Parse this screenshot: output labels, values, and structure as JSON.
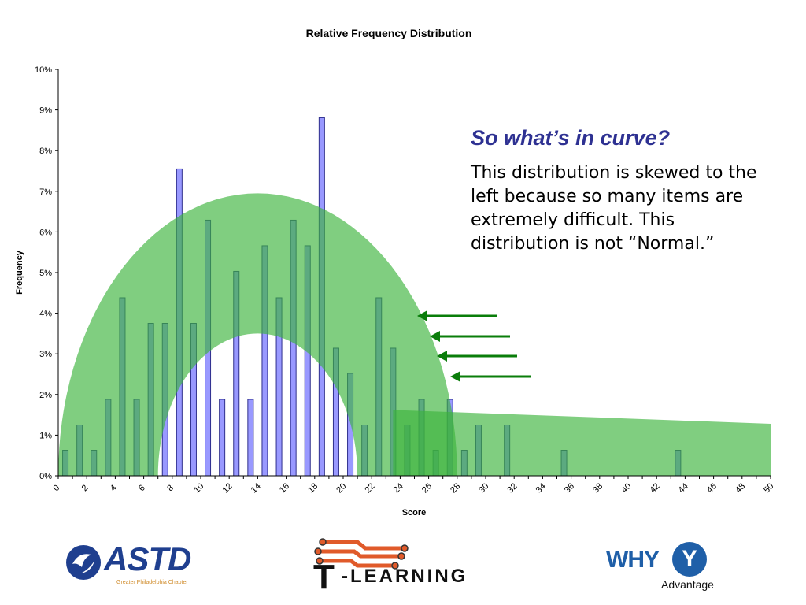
{
  "slide": {
    "heading": "So what’s in curve?",
    "body": "This distribution is skewed to the left because so many items are extremely difficult.  This distribution is not “Normal.”"
  },
  "logos": {
    "astd": {
      "name": "ASTD",
      "subtitle": "Greater Philadelphia Chapter"
    },
    "tlearning": {
      "t": "T",
      "rest": "-LEARNING"
    },
    "why": {
      "why": "WHY",
      "y": "Y",
      "advantage": "Advantage"
    }
  },
  "colors": {
    "bar_fill": "#9999ff",
    "bar_stroke": "#2e2e8c",
    "overlay_green": "#3cb43c",
    "arrow_green": "#0a7d0a",
    "callout_title": "#2e3192"
  },
  "chart_data": {
    "type": "bar",
    "title": "Relative Frequency Distribution",
    "xlabel": "Score",
    "ylabel": "Frequency",
    "ylim": [
      0,
      10
    ],
    "xlim": [
      0,
      50
    ],
    "y_ticks": [
      "0%",
      "1%",
      "2%",
      "3%",
      "4%",
      "5%",
      "6%",
      "7%",
      "8%",
      "9%",
      "10%"
    ],
    "x_ticks": [
      0,
      2,
      4,
      6,
      8,
      10,
      12,
      14,
      16,
      18,
      20,
      22,
      24,
      26,
      28,
      30,
      32,
      34,
      36,
      38,
      40,
      42,
      44,
      46,
      48,
      50
    ],
    "points": [
      {
        "x": 0,
        "y": 0.63
      },
      {
        "x": 1,
        "y": 1.25
      },
      {
        "x": 2,
        "y": 0.63
      },
      {
        "x": 3,
        "y": 1.88
      },
      {
        "x": 4,
        "y": 4.38
      },
      {
        "x": 5,
        "y": 1.88
      },
      {
        "x": 6,
        "y": 3.75
      },
      {
        "x": 7,
        "y": 3.75
      },
      {
        "x": 8,
        "y": 7.55
      },
      {
        "x": 9,
        "y": 3.75
      },
      {
        "x": 10,
        "y": 6.29
      },
      {
        "x": 11,
        "y": 1.88
      },
      {
        "x": 12,
        "y": 5.03
      },
      {
        "x": 13,
        "y": 1.88
      },
      {
        "x": 14,
        "y": 5.66
      },
      {
        "x": 15,
        "y": 4.38
      },
      {
        "x": 16,
        "y": 6.29
      },
      {
        "x": 17,
        "y": 5.66
      },
      {
        "x": 18,
        "y": 8.81
      },
      {
        "x": 19,
        "y": 3.14
      },
      {
        "x": 20,
        "y": 2.52
      },
      {
        "x": 21,
        "y": 1.25
      },
      {
        "x": 22,
        "y": 4.38
      },
      {
        "x": 23,
        "y": 3.14
      },
      {
        "x": 24,
        "y": 1.25
      },
      {
        "x": 25,
        "y": 1.88
      },
      {
        "x": 26,
        "y": 0.63
      },
      {
        "x": 27,
        "y": 1.88
      },
      {
        "x": 28,
        "y": 0.63
      },
      {
        "x": 29,
        "y": 1.25
      },
      {
        "x": 31,
        "y": 1.25
      },
      {
        "x": 35,
        "y": 0.63
      },
      {
        "x": 43,
        "y": 0.63
      }
    ],
    "grid": false,
    "legend": "none"
  }
}
